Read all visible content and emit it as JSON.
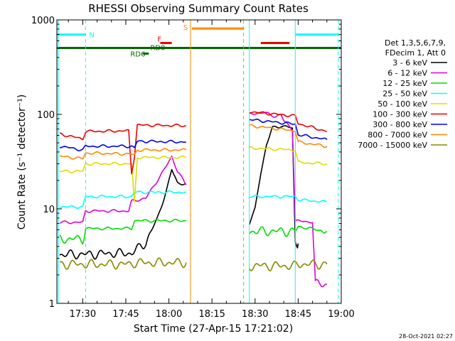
{
  "chart_data": {
    "type": "line",
    "title": "RHESSI Observing Summary Count Rates",
    "xlabel": "Start Time (27-Apr-15 17:21:02)",
    "ylabel": "Count Rate (s⁻¹ detector⁻¹)",
    "y_scale": "log",
    "ylim": [
      1,
      1000
    ],
    "x_units": "minutes after 17:00",
    "xlim": [
      21,
      120
    ],
    "x_ticks": [
      {
        "label": "17:30",
        "value": 30
      },
      {
        "label": "17:45",
        "value": 45
      },
      {
        "label": "18:00",
        "value": 60
      },
      {
        "label": "18:15",
        "value": 75
      },
      {
        "label": "18:30",
        "value": 90
      },
      {
        "label": "18:45",
        "value": 105
      },
      {
        "label": "19:00",
        "value": 120
      }
    ],
    "y_ticks": [
      {
        "label": "1",
        "value": 1
      },
      {
        "label": "10",
        "value": 10
      },
      {
        "label": "100",
        "value": 100
      },
      {
        "label": "1000",
        "value": 1000
      }
    ],
    "legend": {
      "placement": "right",
      "header_lines": [
        "Det 1,3,5,6,7,9,",
        "FDecim 1, Att 0"
      ]
    },
    "series": [
      {
        "name": "3 - 6 keV",
        "color": "#000000",
        "segments": [
          [
            [
              22,
              3.3
            ],
            [
              30,
              3.3
            ],
            [
              31,
              3.3
            ],
            [
              41,
              3.4
            ],
            [
              47,
              3.4
            ],
            [
              52,
              4.4
            ],
            [
              56,
              8
            ],
            [
              59,
              15
            ],
            [
              61,
              26
            ],
            [
              63,
              19
            ],
            [
              66,
              18
            ]
          ],
          [
            [
              88,
              7
            ],
            [
              90,
              10
            ],
            [
              92,
              24
            ],
            [
              94,
              48
            ],
            [
              96,
              72
            ],
            [
              99,
              75
            ],
            [
              101,
              75
            ],
            [
              103,
              70
            ],
            [
              104,
              4.5
            ],
            [
              105,
              4.3
            ]
          ]
        ]
      },
      {
        "name": "6 - 12 keV",
        "color": "#dd00dd",
        "segments": [
          [
            [
              22,
              7.2
            ],
            [
              30,
              7.2
            ],
            [
              31,
              9.5
            ],
            [
              46,
              9.5
            ],
            [
              47,
              12
            ],
            [
              52,
              13
            ],
            [
              56,
              20
            ],
            [
              59,
              28
            ],
            [
              61,
              36
            ],
            [
              63,
              25
            ],
            [
              66,
              18
            ]
          ],
          [
            [
              88,
              100
            ],
            [
              93,
              105
            ],
            [
              97,
              95
            ],
            [
              99,
              100
            ],
            [
              100,
              85
            ],
            [
              102,
              75
            ],
            [
              103,
              70
            ],
            [
              104,
              7.5
            ],
            [
              108,
              7.3
            ],
            [
              110,
              7.3
            ],
            [
              111,
              1.6
            ],
            [
              115,
              1.6
            ]
          ]
        ]
      },
      {
        "name": "12 - 25 keV",
        "color": "#00dd00",
        "segments": [
          [
            [
              22,
              4.8
            ],
            [
              30,
              4.8
            ],
            [
              31,
              6.2
            ],
            [
              47,
              6.2
            ],
            [
              48,
              7.5
            ],
            [
              66,
              7.5
            ]
          ],
          [
            [
              88,
              5.8
            ],
            [
              104,
              5.8
            ],
            [
              105,
              6.5
            ],
            [
              115,
              5.8
            ]
          ]
        ]
      },
      {
        "name": "25 - 50 keV",
        "color": "#00ffff",
        "segments": [
          [
            [
              22,
              10.5
            ],
            [
              30,
              10.5
            ],
            [
              31,
              13.5
            ],
            [
              47,
              13.5
            ],
            [
              48,
              15
            ],
            [
              66,
              15
            ]
          ],
          [
            [
              88,
              13.5
            ],
            [
              104,
              13.5
            ],
            [
              105,
              12.5
            ],
            [
              115,
              11.8
            ]
          ]
        ]
      },
      {
        "name": "50 - 100 keV",
        "color": "#dddd00",
        "segments": [
          [
            [
              22,
              25
            ],
            [
              30,
              25
            ],
            [
              31,
              30
            ],
            [
              47,
              30
            ],
            [
              48,
              11.5
            ],
            [
              49,
              35
            ],
            [
              66,
              35
            ]
          ],
          [
            [
              88,
              44
            ],
            [
              104,
              42
            ],
            [
              105,
              31
            ],
            [
              115,
              30
            ]
          ]
        ]
      },
      {
        "name": "100 - 300 keV",
        "color": "#ee0000",
        "segments": [
          [
            [
              22,
              62
            ],
            [
              30,
              55
            ],
            [
              31,
              66
            ],
            [
              46,
              67
            ],
            [
              47,
              24
            ],
            [
              48,
              36
            ],
            [
              49,
              77
            ],
            [
              66,
              76
            ]
          ],
          [
            [
              88,
              107
            ],
            [
              104,
              96
            ],
            [
              105,
              80
            ],
            [
              115,
              66
            ]
          ]
        ]
      },
      {
        "name": "300 - 800 keV",
        "color": "#0000ee",
        "segments": [
          [
            [
              22,
              46
            ],
            [
              30,
              42
            ],
            [
              31,
              46
            ],
            [
              47,
              46
            ],
            [
              48,
              44
            ],
            [
              49,
              52
            ],
            [
              66,
              51
            ]
          ],
          [
            [
              88,
              88
            ],
            [
              104,
              79
            ],
            [
              105,
              61
            ],
            [
              115,
              54
            ]
          ]
        ]
      },
      {
        "name": "800 - 7000 keV",
        "color": "#ff8800",
        "segments": [
          [
            [
              22,
              36
            ],
            [
              30,
              34
            ],
            [
              31,
              39
            ],
            [
              47,
              38
            ],
            [
              48,
              37
            ],
            [
              49,
              42
            ],
            [
              66,
              42
            ]
          ],
          [
            [
              88,
              76
            ],
            [
              104,
              67
            ],
            [
              105,
              51
            ],
            [
              115,
              46
            ]
          ]
        ]
      },
      {
        "name": "7000 - 15000 keV",
        "color": "#888800",
        "segments": [
          [
            [
              22,
              2.6
            ],
            [
              30,
              2.6
            ],
            [
              31,
              2.6
            ],
            [
              47,
              2.6
            ],
            [
              48,
              2.7
            ],
            [
              66,
              2.7
            ]
          ],
          [
            [
              88,
              2.5
            ],
            [
              104,
              2.5
            ],
            [
              105,
              2.6
            ],
            [
              115,
              2.6
            ]
          ]
        ]
      }
    ],
    "annotations": {
      "flag_labels": [
        {
          "label": "N",
          "color": "#00ffff"
        },
        {
          "label": "S",
          "color": "#ff8800"
        },
        {
          "label": "F",
          "color": "#ee0000"
        },
        {
          "label": "RD6",
          "color": "#006600"
        },
        {
          "label": "RD0",
          "color": "#006600"
        }
      ],
      "intervals": [
        {
          "color": "#00ffff",
          "y": 700,
          "x0": 21,
          "x1": 31
        },
        {
          "color": "#00ffff",
          "y": 700,
          "x0": 104,
          "x1": 119
        },
        {
          "color": "#ff8800",
          "y": 810,
          "x0": 68,
          "x1": 86
        },
        {
          "color": "#ee0000",
          "y": 570,
          "x0": 57,
          "x1": 61
        },
        {
          "color": "#ee0000",
          "y": 570,
          "x0": 92,
          "x1": 102
        },
        {
          "color": "#006600",
          "y": 505,
          "x0": 21,
          "x1": 120
        },
        {
          "color": "#006600",
          "y": 440,
          "x0": 51,
          "x1": 53
        }
      ],
      "vertical_lines": [
        {
          "x": 21.5,
          "color": "#00ffff",
          "style": "solid"
        },
        {
          "x": 31,
          "color": "#00ffff",
          "style": "dashed"
        },
        {
          "x": 67.5,
          "color": "#ff8800",
          "style": "solid"
        },
        {
          "x": 86,
          "color": "#ff8800",
          "style": "dashed"
        },
        {
          "x": 88,
          "color": "#00ffff",
          "style": "solid"
        },
        {
          "x": 104,
          "color": "#00ffff",
          "style": "solid"
        },
        {
          "x": 119,
          "color": "#00ffff",
          "style": "dashed"
        }
      ]
    },
    "timestamp": "28-Oct-2021 02:27"
  }
}
